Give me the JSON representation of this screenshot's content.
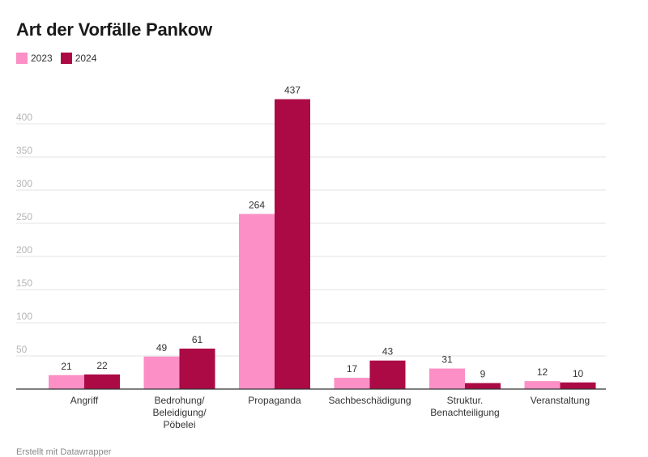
{
  "chart_data": {
    "type": "bar",
    "title": "Art der Vorfälle Pankow",
    "categories": [
      [
        "Angriff"
      ],
      [
        "Bedrohung/",
        "Beleidigung/",
        "Pöbelei"
      ],
      [
        "Propaganda"
      ],
      [
        "Sachbeschädigung"
      ],
      [
        "Struktur.",
        "Benachteiligung"
      ],
      [
        "Veranstaltung"
      ]
    ],
    "series": [
      {
        "name": "2023",
        "color": "#fb8fc6",
        "values": [
          21,
          49,
          264,
          17,
          31,
          12
        ]
      },
      {
        "name": "2024",
        "color": "#ab0a45",
        "values": [
          22,
          61,
          437,
          43,
          9,
          10
        ]
      }
    ],
    "yticks": [
      "50",
      "100",
      "150",
      "200",
      "250",
      "300",
      "350",
      "400"
    ],
    "ylim": [
      0,
      437
    ],
    "grid": true,
    "legend_position": "top-left"
  },
  "footer": "Erstellt mit Datawrapper"
}
